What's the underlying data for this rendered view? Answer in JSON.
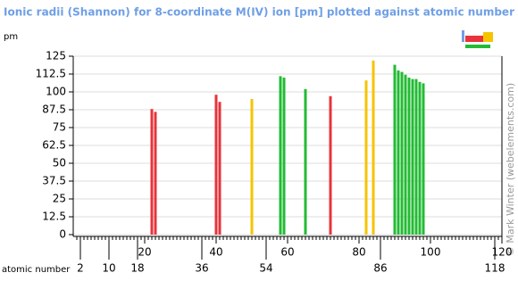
{
  "chart_data": {
    "type": "bar",
    "title": "Ionic radii (Shannon) for 8-coordinate M(IV) ion [pm] plotted against atomic number",
    "y_label": "pm",
    "x_label": "atomic number",
    "credit": "© Mark Winter (webelements.com)",
    "x": [
      22,
      23,
      40,
      41,
      50,
      58,
      59,
      65,
      72,
      82,
      84,
      90,
      91,
      92,
      93,
      94,
      95,
      96,
      97,
      98
    ],
    "values": [
      88,
      86,
      98,
      93,
      95,
      111,
      110,
      102,
      97,
      108,
      122,
      119,
      115,
      114,
      112,
      110,
      109,
      109,
      107,
      106
    ],
    "colors": [
      "#e8333b",
      "#e8333b",
      "#e8333b",
      "#e8333b",
      "#f5c400",
      "#22bb33",
      "#22bb33",
      "#22bb33",
      "#e8333b",
      "#f5c400",
      "#f5c400",
      "#22bb33",
      "#22bb33",
      "#22bb33",
      "#22bb33",
      "#22bb33",
      "#22bb33",
      "#22bb33",
      "#22bb33",
      "#22bb33"
    ],
    "xlim": [
      0,
      120
    ],
    "xticks": [
      20,
      40,
      60,
      80,
      100,
      120
    ],
    "xticks_secondary": [
      2,
      10,
      18,
      36,
      54,
      86,
      118
    ],
    "minor_tick_step": 1,
    "ylim": [
      0,
      125
    ],
    "yticks": [
      0,
      12.5,
      25,
      37.5,
      50,
      62.5,
      75,
      87.5,
      100,
      112.5,
      125
    ],
    "grid": true
  }
}
